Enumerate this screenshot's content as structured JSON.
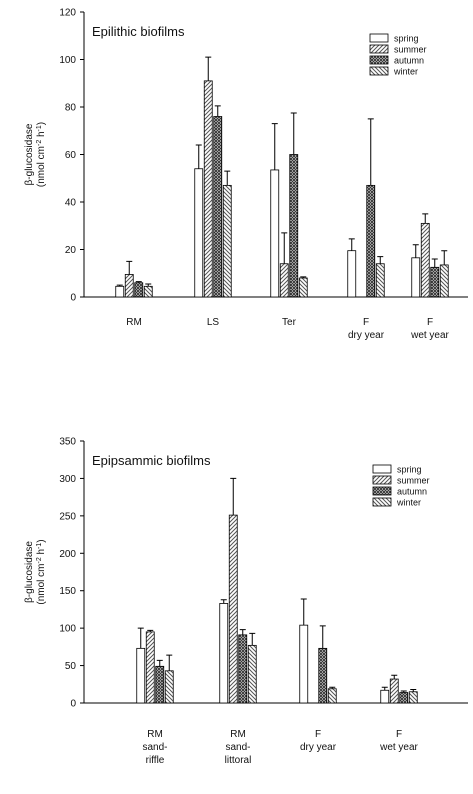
{
  "chart_data": [
    {
      "type": "bar",
      "title": "Epilithic biofilms",
      "ylabel": "β-glucosidase",
      "ylabel_unit": [
        "(nmol cm",
        "-2",
        " h",
        "-1",
        ")"
      ],
      "categories": [
        [
          "RM"
        ],
        [
          "LS"
        ],
        [
          "Ter"
        ],
        [
          "F",
          "dry year"
        ],
        [
          "F",
          "wet year"
        ]
      ],
      "ylim": [
        0,
        120
      ],
      "yticks": [
        0,
        20,
        40,
        60,
        80,
        100,
        120
      ],
      "series": [
        {
          "name": "spring",
          "color": "#ffffff",
          "pattern": "none",
          "values": [
            4.5,
            54,
            53.5,
            19.5,
            16.5
          ],
          "errors": [
            0.5,
            10,
            19.5,
            5,
            5.5
          ]
        },
        {
          "name": "summer",
          "color": "#555555",
          "pattern": "diag",
          "values": [
            9.5,
            91,
            14,
            null,
            31
          ],
          "errors": [
            5.5,
            10,
            13,
            null,
            4
          ]
        },
        {
          "name": "autumn",
          "color": "#333333",
          "pattern": "cross",
          "values": [
            6,
            76,
            60,
            47,
            12.5
          ],
          "errors": [
            0.5,
            4.5,
            17.5,
            28,
            3.5
          ]
        },
        {
          "name": "winter",
          "color": "#555555",
          "pattern": "back",
          "values": [
            4.5,
            47,
            8,
            14,
            13.5
          ],
          "errors": [
            1,
            6,
            0.5,
            3,
            6
          ]
        }
      ]
    },
    {
      "type": "bar",
      "title": "Epipsammic biofilms",
      "ylabel": "β-glucosidase",
      "ylabel_unit": [
        "(nmol cm",
        "-2",
        " h",
        "-1",
        ")"
      ],
      "categories": [
        [
          "RM",
          "sand-",
          "riffle"
        ],
        [
          "RM",
          "sand-",
          "littoral"
        ],
        [
          "F",
          "dry year"
        ],
        [
          "F",
          "wet year"
        ]
      ],
      "ylim": [
        0,
        350
      ],
      "yticks": [
        0,
        50,
        100,
        150,
        200,
        250,
        300,
        350
      ],
      "series": [
        {
          "name": "spring",
          "color": "#ffffff",
          "pattern": "none",
          "values": [
            73,
            133,
            104,
            17
          ],
          "errors": [
            27,
            5,
            35,
            4
          ]
        },
        {
          "name": "summer",
          "color": "#555555",
          "pattern": "diag",
          "values": [
            95,
            251,
            null,
            32
          ],
          "errors": [
            2,
            49,
            null,
            5
          ]
        },
        {
          "name": "autumn",
          "color": "#333333",
          "pattern": "cross",
          "values": [
            49,
            91,
            73,
            14
          ],
          "errors": [
            8,
            7,
            30,
            2
          ]
        },
        {
          "name": "winter",
          "color": "#555555",
          "pattern": "back",
          "values": [
            43,
            77,
            19,
            15
          ],
          "errors": [
            21,
            16,
            2,
            3
          ]
        }
      ]
    }
  ]
}
